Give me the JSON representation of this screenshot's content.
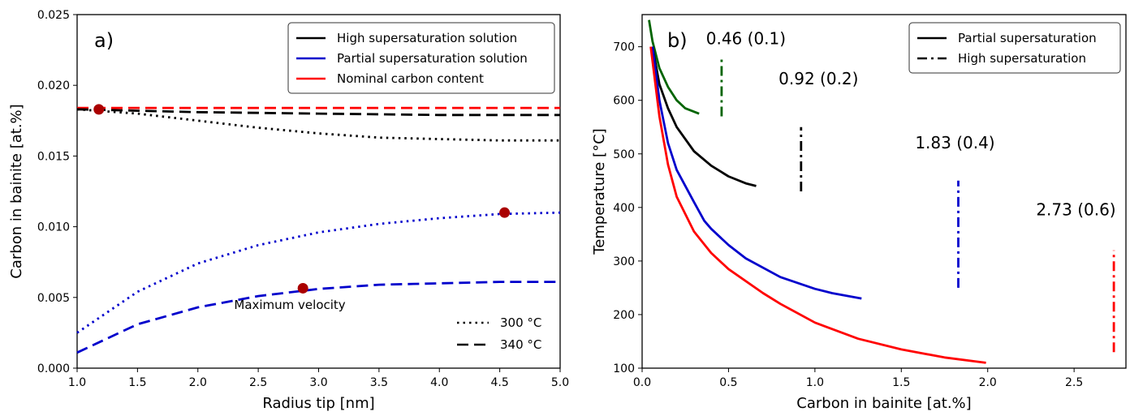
{
  "chart_data": [
    {
      "type": "line",
      "panel_label": "a)",
      "xlabel": "Radius tip [nm]",
      "ylabel": "Carbon in bainite [at.%]",
      "xlim": [
        1.0,
        5.0
      ],
      "ylim": [
        0.0,
        0.025
      ],
      "xticks": [
        "1.0",
        "1.5",
        "2.0",
        "2.5",
        "3.0",
        "3.5",
        "4.0",
        "4.5",
        "5.0"
      ],
      "yticks": [
        "0.000",
        "0.005",
        "0.010",
        "0.015",
        "0.020",
        "0.025"
      ],
      "legend": {
        "position": "top-right",
        "entries": [
          {
            "label": "High supersaturation solution",
            "color": "#000000"
          },
          {
            "label": "Partial supersaturation solution",
            "color": "#0000cc"
          },
          {
            "label": "Nominal carbon content",
            "color": "#ff0000"
          }
        ]
      },
      "style_legend": {
        "position": "bottom-right",
        "entries": [
          {
            "label": "300 °C",
            "dash": "dotted"
          },
          {
            "label": "340 °C",
            "dash": "dashed"
          }
        ]
      },
      "series": [
        {
          "color": "#ff0000",
          "dash": "dashed",
          "x": [
            1.0,
            5.0
          ],
          "y": [
            0.0184,
            0.0184
          ]
        },
        {
          "color": "#000000",
          "dash": "dashed",
          "x": [
            1.0,
            2.0,
            3.0,
            4.0,
            5.0
          ],
          "y": [
            0.0183,
            0.0181,
            0.018,
            0.0179,
            0.0179
          ]
        },
        {
          "color": "#000000",
          "dash": "dotted",
          "x": [
            1.0,
            1.5,
            2.0,
            2.5,
            3.0,
            3.5,
            4.0,
            4.5,
            5.0
          ],
          "y": [
            0.0183,
            0.018,
            0.0175,
            0.017,
            0.0166,
            0.0163,
            0.0162,
            0.0161,
            0.0161
          ]
        },
        {
          "color": "#0000cc",
          "dash": "dotted",
          "x": [
            1.0,
            1.5,
            2.0,
            2.5,
            3.0,
            3.5,
            4.0,
            4.5,
            5.0
          ],
          "y": [
            0.0025,
            0.0054,
            0.0074,
            0.0087,
            0.0096,
            0.0102,
            0.0106,
            0.0109,
            0.011
          ]
        },
        {
          "color": "#0000cc",
          "dash": "dashed",
          "x": [
            1.0,
            1.5,
            2.0,
            2.5,
            3.0,
            3.5,
            4.0,
            4.5,
            5.0
          ],
          "y": [
            0.0011,
            0.0031,
            0.0043,
            0.0051,
            0.0056,
            0.0059,
            0.006,
            0.0061,
            0.0061
          ]
        }
      ],
      "markers": [
        {
          "x": 1.18,
          "y": 0.0183,
          "color": "#aa0000"
        },
        {
          "x": 4.54,
          "y": 0.011,
          "color": "#aa0000"
        },
        {
          "x": 2.87,
          "y": 0.00565,
          "color": "#aa0000"
        }
      ],
      "annotations": [
        {
          "text": "Maximum velocity",
          "x": 2.3,
          "y": 0.0042
        }
      ]
    },
    {
      "type": "line",
      "panel_label": "b)",
      "xlabel": "Carbon in bainite [at.%]",
      "ylabel": "Temperature [°C]",
      "xlim": [
        0.0,
        2.8
      ],
      "ylim": [
        100,
        760
      ],
      "xticks": [
        "0.0",
        "0.5",
        "1.0",
        "1.5",
        "2.0",
        "2.5"
      ],
      "yticks": [
        "100",
        "200",
        "300",
        "400",
        "500",
        "600",
        "700"
      ],
      "legend": {
        "position": "top-right",
        "entries": [
          {
            "label": "Partial supersaturation",
            "dash": "solid"
          },
          {
            "label": "High supersaturation",
            "dash": "dashdot"
          }
        ]
      },
      "series": [
        {
          "color": "#006400",
          "dash": "solid",
          "x": [
            0.04,
            0.06,
            0.1,
            0.15,
            0.2,
            0.25,
            0.33
          ],
          "y": [
            750,
            710,
            660,
            625,
            600,
            585,
            575
          ]
        },
        {
          "color": "#000000",
          "dash": "solid",
          "x": [
            0.06,
            0.1,
            0.15,
            0.2,
            0.3,
            0.4,
            0.5,
            0.6,
            0.66
          ],
          "y": [
            700,
            630,
            585,
            550,
            505,
            478,
            458,
            445,
            440
          ]
        },
        {
          "color": "#0000cc",
          "dash": "solid",
          "x": [
            0.06,
            0.1,
            0.15,
            0.2,
            0.3,
            0.36,
            0.4,
            0.5,
            0.6,
            0.8,
            1.0,
            1.1,
            1.27
          ],
          "y": [
            700,
            600,
            520,
            470,
            410,
            375,
            360,
            330,
            305,
            270,
            248,
            240,
            230
          ]
        },
        {
          "color": "#ff0000",
          "dash": "solid",
          "x": [
            0.05,
            0.1,
            0.15,
            0.2,
            0.3,
            0.4,
            0.5,
            0.7,
            0.8,
            1.0,
            1.25,
            1.5,
            1.75,
            1.99
          ],
          "y": [
            700,
            570,
            480,
            420,
            355,
            315,
            285,
            240,
            220,
            185,
            155,
            135,
            120,
            110
          ]
        },
        {
          "color": "#006400",
          "dash": "dashdot",
          "x": [
            0.46,
            0.46
          ],
          "y": [
            570,
            680
          ]
        },
        {
          "color": "#000000",
          "dash": "dashdot",
          "x": [
            0.92,
            0.92
          ],
          "y": [
            430,
            550
          ]
        },
        {
          "color": "#0000cc",
          "dash": "dashdot",
          "x": [
            1.83,
            1.83
          ],
          "y": [
            250,
            450
          ]
        },
        {
          "color": "#ff0000",
          "dash": "dashdot",
          "x": [
            2.73,
            2.73
          ],
          "y": [
            130,
            320
          ]
        }
      ],
      "annotations": [
        {
          "text": "0.46 (0.1)",
          "x": 0.37,
          "y": 705
        },
        {
          "text": "0.92 (0.2)",
          "x": 0.79,
          "y": 630
        },
        {
          "text": "1.83 (0.4)",
          "x": 1.58,
          "y": 510
        },
        {
          "text": "2.73 (0.6)",
          "x": 2.28,
          "y": 385
        }
      ]
    }
  ]
}
